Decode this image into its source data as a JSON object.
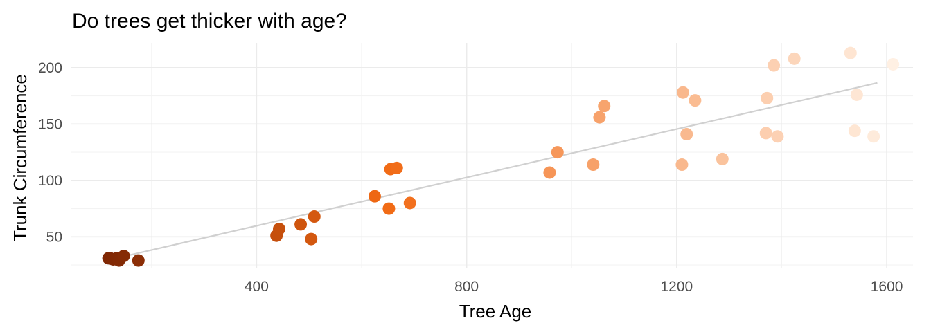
{
  "chart_data": {
    "type": "scatter",
    "title": "Do trees get thicker with age?",
    "xlabel": "Tree Age",
    "ylabel": "Trunk Circumference",
    "xlim": [
      46,
      1650
    ],
    "ylim": [
      22,
      222
    ],
    "x_ticks": [
      400,
      800,
      1200,
      1600
    ],
    "x_minor_ticks": [
      200,
      600,
      1000,
      1400
    ],
    "y_ticks": [
      50,
      100,
      150,
      200
    ],
    "y_minor_ticks": [
      25,
      75,
      125,
      175
    ],
    "grid": true,
    "legend": "none",
    "color_scale": {
      "low": "#7f2704",
      "mid": "#f16913",
      "high": "#fff0e3"
    },
    "trend_line": {
      "x": [
        118,
        1582
      ],
      "y": [
        29.5,
        186.5
      ],
      "color": "#d0d0d0"
    },
    "points": [
      {
        "x": 118,
        "y": 31
      },
      {
        "x": 121,
        "y": 31
      },
      {
        "x": 127,
        "y": 30
      },
      {
        "x": 134,
        "y": 31
      },
      {
        "x": 138,
        "y": 29
      },
      {
        "x": 147,
        "y": 33
      },
      {
        "x": 175,
        "y": 29
      },
      {
        "x": 438,
        "y": 51
      },
      {
        "x": 443,
        "y": 57
      },
      {
        "x": 484,
        "y": 61
      },
      {
        "x": 504,
        "y": 48
      },
      {
        "x": 510,
        "y": 68
      },
      {
        "x": 625,
        "y": 86
      },
      {
        "x": 652,
        "y": 75
      },
      {
        "x": 655,
        "y": 110
      },
      {
        "x": 667,
        "y": 111
      },
      {
        "x": 692,
        "y": 80
      },
      {
        "x": 958,
        "y": 107
      },
      {
        "x": 973,
        "y": 125
      },
      {
        "x": 1041,
        "y": 114
      },
      {
        "x": 1053,
        "y": 156
      },
      {
        "x": 1062,
        "y": 166
      },
      {
        "x": 1210,
        "y": 114
      },
      {
        "x": 1212,
        "y": 178
      },
      {
        "x": 1219,
        "y": 141
      },
      {
        "x": 1235,
        "y": 171
      },
      {
        "x": 1287,
        "y": 119
      },
      {
        "x": 1370,
        "y": 142
      },
      {
        "x": 1372,
        "y": 173
      },
      {
        "x": 1385,
        "y": 202
      },
      {
        "x": 1392,
        "y": 139
      },
      {
        "x": 1424,
        "y": 208
      },
      {
        "x": 1531,
        "y": 213
      },
      {
        "x": 1539,
        "y": 144
      },
      {
        "x": 1543,
        "y": 176
      },
      {
        "x": 1575,
        "y": 139
      },
      {
        "x": 1612,
        "y": 203
      }
    ]
  }
}
